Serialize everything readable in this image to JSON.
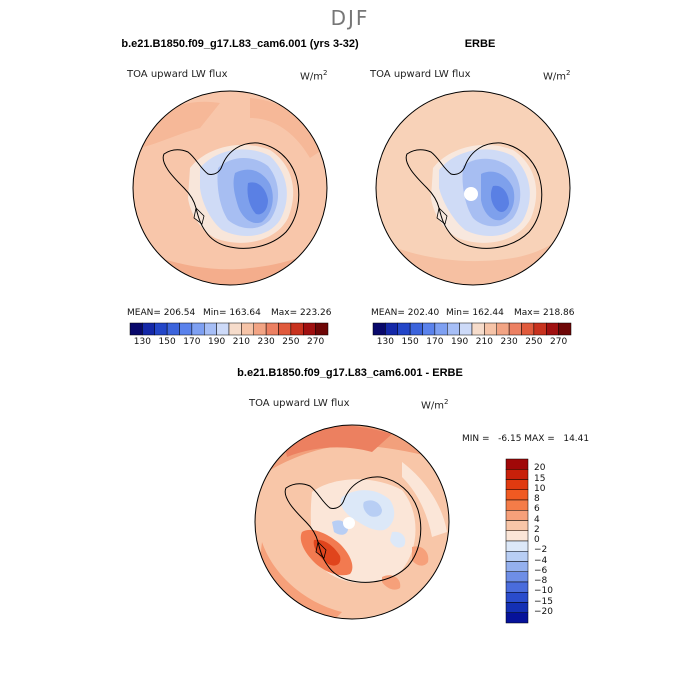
{
  "season": "DJF",
  "panels": {
    "model": {
      "title": "b.e21.B1850.f09_g17.L83_cam6.001 (yrs 3-32)",
      "variable": "TOA upward LW flux",
      "units": "W/m",
      "units_sup": "2",
      "mean": "MEAN= 206.54",
      "min": "Min= 163.64",
      "max": "Max= 223.26"
    },
    "obs": {
      "title": "ERBE",
      "variable": "TOA upward LW flux",
      "units": "W/m",
      "units_sup": "2",
      "mean": "MEAN= 202.40",
      "min": "Min= 162.44",
      "max": "Max= 218.86"
    },
    "diff": {
      "title": "b.e21.B1850.f09_g17.L83_cam6.001 - ERBE",
      "variable": "TOA upward LW flux",
      "units": "W/m",
      "units_sup": "2",
      "minmax": "MIN =   -6.15 MAX =   14.41"
    }
  },
  "abs_colorbar": {
    "colors": [
      "#08086b",
      "#1428a8",
      "#2346c8",
      "#3c64dc",
      "#5a82ec",
      "#7ea0f2",
      "#a6bef6",
      "#cddaf8",
      "#f6dccb",
      "#f6c4a8",
      "#f2a484",
      "#ec8062",
      "#e05a3c",
      "#c8321e",
      "#a01010",
      "#6e0606"
    ],
    "tick_labels": [
      "130",
      "150",
      "170",
      "190",
      "210",
      "230",
      "250",
      "270"
    ]
  },
  "diff_colorbar": {
    "colors": [
      "#a00808",
      "#c8200a",
      "#e03a10",
      "#f05a22",
      "#f47c48",
      "#f6a07a",
      "#f8c6a8",
      "#fbe6d8",
      "#dce8f8",
      "#b8cef4",
      "#94b0ee",
      "#6e8ee6",
      "#4a6cdc",
      "#2a4ccc",
      "#1430b4",
      "#06129a"
    ],
    "tick_labels": [
      "20",
      "15",
      "10",
      "8",
      "6",
      "4",
      "2",
      "0",
      "−2",
      "−4",
      "−6",
      "−8",
      "−10",
      "−15",
      "−20"
    ]
  }
}
